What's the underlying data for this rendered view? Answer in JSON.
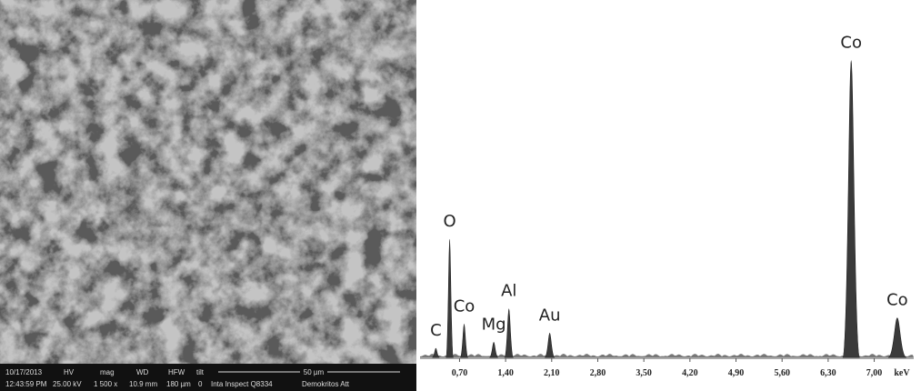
{
  "sem_image": {
    "info_bar": {
      "date": "10/17/2013",
      "time": "12:43:59 PM",
      "hv_label": "HV",
      "hv": "25.00 kV",
      "mag_label": "mag",
      "mag": "1 500 x",
      "wd_label": "WD",
      "wd": "10.9 mm",
      "hfw_label": "HFW",
      "hfw": "180 µm",
      "tilt_label": "tilt",
      "tilt": "0",
      "scale": "50 µm",
      "instrument": "Inta Inspect Q8334",
      "lab": "Demokritos Att"
    }
  },
  "chart_data": {
    "type": "spectrum",
    "x_label": "keV",
    "labels": [
      "C",
      "O",
      "Co",
      "Mg",
      "Al",
      "Au",
      "Co",
      "Co"
    ],
    "x": [
      0.34,
      0.55,
      0.77,
      1.22,
      1.45,
      2.07,
      6.65,
      7.35
    ],
    "values": [
      3,
      39,
      11,
      5,
      16,
      8,
      98,
      13
    ],
    "color": "#3a3a3a",
    "xlim": [
      0.1,
      7.6
    ],
    "ylim": [
      0,
      100
    ],
    "xticks": [
      {
        "value": 0.7,
        "label": "0,70"
      },
      {
        "value": 1.4,
        "label": "1,40"
      },
      {
        "value": 2.1,
        "label": "2,10"
      },
      {
        "value": 2.8,
        "label": "2,80"
      },
      {
        "value": 3.5,
        "label": "3,50"
      },
      {
        "value": 4.2,
        "label": "4,20"
      },
      {
        "value": 4.9,
        "label": "4,90"
      },
      {
        "value": 5.6,
        "label": "5,60"
      },
      {
        "value": 6.3,
        "label": "6,30"
      },
      {
        "value": 7.0,
        "label": "7,00"
      }
    ]
  }
}
